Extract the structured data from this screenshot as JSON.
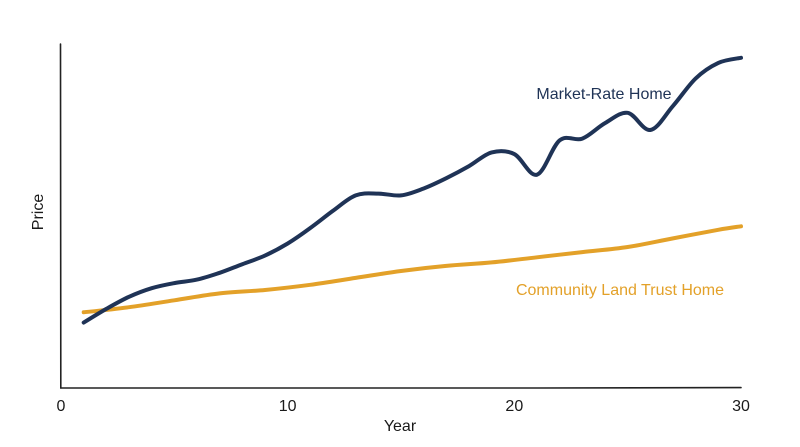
{
  "chart_data": {
    "type": "line",
    "xlabel": "Year",
    "ylabel": "Price",
    "xlim": [
      0,
      30
    ],
    "ylim": [
      0,
      100
    ],
    "xticks": [
      "0",
      "10",
      "20",
      "30"
    ],
    "grid": false,
    "series": [
      {
        "name": "Market-Rate Home",
        "color": "#1f3356",
        "x": [
          1,
          2,
          3,
          4,
          5,
          6,
          7,
          8,
          9,
          10,
          11,
          12,
          13,
          14,
          15,
          16,
          17,
          18,
          19,
          20,
          21,
          22,
          23,
          24,
          25,
          26,
          27,
          28,
          29,
          30
        ],
        "values": [
          19,
          23,
          26.5,
          29,
          30.5,
          31.5,
          33.5,
          36,
          38.5,
          42,
          46.5,
          51.5,
          56,
          56.5,
          56,
          58,
          61,
          64.5,
          68.5,
          68,
          62,
          72,
          72.5,
          77,
          80,
          75,
          82,
          90,
          94.5,
          96
        ]
      },
      {
        "name": "Community Land Trust Home",
        "color": "#e3a129",
        "x": [
          1,
          3,
          5,
          7,
          9,
          11,
          13,
          15,
          17,
          19,
          21,
          23,
          25,
          27,
          29,
          30
        ],
        "values": [
          22,
          23.5,
          25.5,
          27.5,
          28.5,
          30,
          32,
          34,
          35.5,
          36.5,
          38,
          39.5,
          41,
          43.5,
          46,
          47
        ]
      }
    ]
  }
}
